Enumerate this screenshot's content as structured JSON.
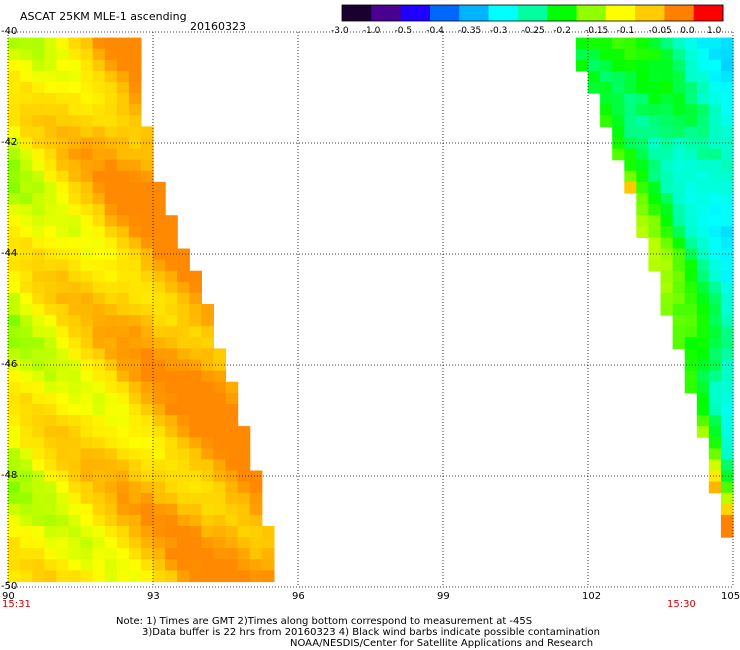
{
  "header": {
    "title": "ASCAT 25KM MLE-1 ascending",
    "date": "20160323"
  },
  "colorbar": {
    "labels": [
      "-3.0",
      "-1.0",
      "-0.5",
      "-0.4",
      "-0.35",
      "-0.3",
      "-0.25",
      "-0.2",
      "-0.15",
      "-0.1",
      "-0.05",
      "0.0",
      "1.0"
    ],
    "colors": [
      "#1a0030",
      "#4a0090",
      "#1f00ff",
      "#0068ff",
      "#00b4ff",
      "#00ffff",
      "#00ffa0",
      "#00ff00",
      "#90ff00",
      "#ffff00",
      "#ffcc00",
      "#ff8000",
      "#ff0000"
    ]
  },
  "chart_data": {
    "type": "heatmap",
    "title": "ASCAT 25KM MLE-1 ascending",
    "subtitle": "20160323",
    "x_ticks": [
      "90",
      "93",
      "96",
      "99",
      "102",
      "105"
    ],
    "y_ticks": [
      "-40",
      "-42",
      "-44",
      "-46",
      "-48",
      "-50"
    ],
    "xlim": [
      90,
      105
    ],
    "ylim": [
      -50,
      -40
    ],
    "time_labels": {
      "left": "15:31",
      "right": "15:30"
    },
    "grid": true,
    "swaths": [
      {
        "name": "west swath",
        "west_edge_lon": 90,
        "east_edge": [
          [
            -40.1,
            92.8
          ],
          [
            -41.4,
            92.9
          ],
          [
            -42.5,
            93.1
          ],
          [
            -43.5,
            93.5
          ],
          [
            -44.6,
            94.1
          ],
          [
            -45.8,
            94.5
          ],
          [
            -46.9,
            94.9
          ],
          [
            -47.9,
            95.2
          ],
          [
            -48.8,
            95.4
          ],
          [
            -49.5,
            95.6
          ],
          [
            -50.0,
            95.7
          ]
        ],
        "typical_mle": -0.05,
        "mle_range": [
          -0.15,
          0.0
        ]
      },
      {
        "name": "east swath",
        "east_edge": [
          [
            -40.1,
            105.0
          ],
          [
            -50.0,
            105.0
          ]
        ],
        "west_edge": [
          [
            -40.1,
            101.8
          ],
          [
            -40.6,
            101.9
          ],
          [
            -41.4,
            102.4
          ],
          [
            -42.2,
            102.7
          ],
          [
            -43.0,
            103.0
          ],
          [
            -43.5,
            103.2
          ],
          [
            -44.6,
            103.6
          ],
          [
            -45.7,
            104.0
          ],
          [
            -46.9,
            104.4
          ],
          [
            -47.7,
            104.6
          ],
          [
            -48.4,
            104.8
          ],
          [
            -49.2,
            105.0
          ]
        ],
        "typical_mle": -0.25,
        "mle_range": [
          -0.5,
          -0.05
        ]
      }
    ]
  },
  "notes": {
    "line1": "Note: 1) Times are GMT 2)Times along bottom correspond to measurement at -45S",
    "line2": "3)Data buffer is 22 hrs from 20160323 4) Black wind barbs indicate possible contamination",
    "line3": "NOAA/NESDIS/Center for Satellite Applications and Research"
  }
}
